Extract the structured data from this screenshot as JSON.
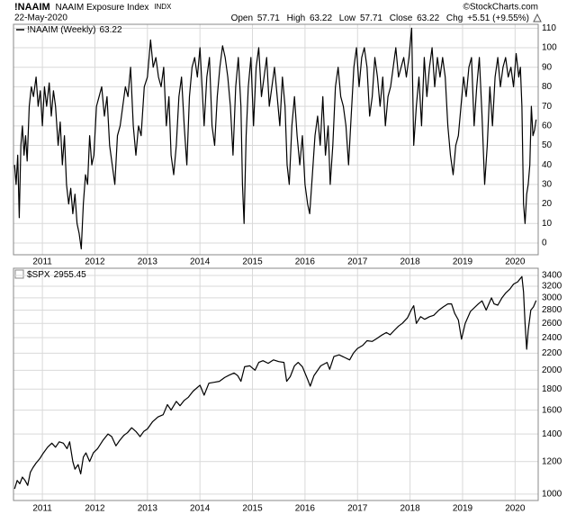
{
  "header": {
    "symbol": "!NAAIM",
    "name": "NAAIM Exposure Index",
    "exchange": "INDX",
    "date": "22-May-2020",
    "watermark": "©StockCharts.com",
    "stats": [
      {
        "label": "Open",
        "value": 57.71
      },
      {
        "label": "High",
        "value": 63.22
      },
      {
        "label": "Low",
        "value": 57.71
      },
      {
        "label": "Close",
        "value": 63.22
      },
      {
        "label": "Chg",
        "value": "+5.51 (+9.55%)"
      }
    ]
  },
  "chart_data": [
    {
      "type": "line",
      "legend_value": 63.22,
      "x": [
        2010.47,
        2010.5,
        2010.53,
        2010.56,
        2010.59,
        2010.62,
        2010.65,
        2010.68,
        2010.71,
        2010.75,
        2010.79,
        2010.83,
        2010.88,
        2010.92,
        2010.96,
        2011.0,
        2011.04,
        2011.08,
        2011.13,
        2011.17,
        2011.21,
        2011.25,
        2011.3,
        2011.34,
        2011.38,
        2011.42,
        2011.46,
        2011.5,
        2011.54,
        2011.58,
        2011.62,
        2011.66,
        2011.7,
        2011.74,
        2011.78,
        2011.82,
        2011.86,
        2011.9,
        2011.94,
        2011.98,
        2012.03,
        2012.08,
        2012.13,
        2012.18,
        2012.23,
        2012.28,
        2012.33,
        2012.38,
        2012.43,
        2012.48,
        2012.53,
        2012.58,
        2012.63,
        2012.68,
        2012.73,
        2012.78,
        2012.83,
        2012.88,
        2012.94,
        2013.0,
        2013.06,
        2013.11,
        2013.16,
        2013.21,
        2013.26,
        2013.31,
        2013.36,
        2013.41,
        2013.45,
        2013.5,
        2013.55,
        2013.6,
        2013.65,
        2013.7,
        2013.75,
        2013.8,
        2013.85,
        2013.9,
        2013.95,
        2014.0,
        2014.04,
        2014.08,
        2014.13,
        2014.18,
        2014.23,
        2014.28,
        2014.33,
        2014.38,
        2014.43,
        2014.48,
        2014.53,
        2014.58,
        2014.63,
        2014.68,
        2014.73,
        2014.78,
        2014.81,
        2014.84,
        2014.88,
        2014.92,
        2014.97,
        2015.02,
        2015.07,
        2015.12,
        2015.17,
        2015.22,
        2015.27,
        2015.32,
        2015.37,
        2015.42,
        2015.47,
        2015.52,
        2015.57,
        2015.62,
        2015.66,
        2015.7,
        2015.75,
        2015.8,
        2015.85,
        2015.9,
        2015.95,
        2016.0,
        2016.05,
        2016.09,
        2016.14,
        2016.19,
        2016.24,
        2016.29,
        2016.34,
        2016.39,
        2016.44,
        2016.48,
        2016.53,
        2016.58,
        2016.63,
        2016.68,
        2016.73,
        2016.78,
        2016.83,
        2016.88,
        2016.93,
        2016.98,
        2017.03,
        2017.08,
        2017.13,
        2017.18,
        2017.23,
        2017.28,
        2017.33,
        2017.38,
        2017.43,
        2017.48,
        2017.53,
        2017.58,
        2017.63,
        2017.68,
        2017.73,
        2017.78,
        2017.83,
        2017.88,
        2017.93,
        2017.98,
        2018.03,
        2018.07,
        2018.12,
        2018.17,
        2018.22,
        2018.27,
        2018.32,
        2018.37,
        2018.42,
        2018.47,
        2018.52,
        2018.57,
        2018.62,
        2018.67,
        2018.72,
        2018.77,
        2018.82,
        2018.87,
        2018.92,
        2018.97,
        2019.02,
        2019.07,
        2019.12,
        2019.17,
        2019.22,
        2019.27,
        2019.32,
        2019.37,
        2019.42,
        2019.47,
        2019.52,
        2019.57,
        2019.62,
        2019.67,
        2019.72,
        2019.77,
        2019.82,
        2019.87,
        2019.92,
        2019.97,
        2020.02,
        2020.07,
        2020.1,
        2020.13,
        2020.16,
        2020.19,
        2020.22,
        2020.25,
        2020.28,
        2020.31,
        2020.34,
        2020.37,
        2020.4
      ],
      "series": [
        {
          "name": "!NAAIM (Weekly)",
          "color": "#000000",
          "values": [
            40,
            30,
            45,
            13,
            50,
            60,
            45,
            55,
            42,
            70,
            80,
            75,
            85,
            70,
            78,
            60,
            80,
            70,
            82,
            65,
            78,
            70,
            50,
            62,
            40,
            55,
            30,
            20,
            28,
            15,
            25,
            10,
            5,
            -3,
            20,
            35,
            30,
            55,
            40,
            45,
            70,
            75,
            80,
            65,
            75,
            50,
            40,
            30,
            55,
            60,
            70,
            80,
            75,
            90,
            60,
            45,
            60,
            55,
            80,
            85,
            104,
            90,
            95,
            85,
            80,
            90,
            60,
            75,
            45,
            35,
            50,
            75,
            85,
            60,
            40,
            75,
            90,
            95,
            85,
            100,
            80,
            60,
            85,
            95,
            60,
            50,
            75,
            90,
            101,
            95,
            85,
            70,
            45,
            80,
            95,
            70,
            30,
            10,
            55,
            80,
            95,
            60,
            90,
            100,
            75,
            85,
            95,
            70,
            80,
            90,
            75,
            60,
            85,
            70,
            40,
            30,
            60,
            75,
            55,
            40,
            55,
            30,
            20,
            15,
            35,
            55,
            65,
            50,
            75,
            45,
            60,
            30,
            50,
            80,
            90,
            75,
            70,
            60,
            40,
            65,
            90,
            100,
            80,
            95,
            100,
            90,
            65,
            75,
            95,
            85,
            70,
            85,
            60,
            75,
            80,
            90,
            100,
            85,
            90,
            95,
            85,
            95,
            110,
            50,
            70,
            85,
            60,
            95,
            75,
            90,
            100,
            80,
            95,
            85,
            95,
            85,
            60,
            45,
            35,
            50,
            55,
            70,
            85,
            75,
            90,
            95,
            60,
            80,
            95,
            65,
            30,
            50,
            80,
            60,
            85,
            95,
            80,
            90,
            95,
            85,
            90,
            80,
            97,
            85,
            90,
            70,
            20,
            10,
            25,
            30,
            40,
            70,
            55,
            57.71,
            63.22
          ]
        }
      ],
      "xlim": [
        2010.45,
        2020.44
      ],
      "xticks": [
        2011,
        2012,
        2013,
        2014,
        2015,
        2016,
        2017,
        2018,
        2019,
        2020
      ],
      "ylim": [
        -6,
        112
      ],
      "yticks": [
        0,
        10,
        20,
        30,
        40,
        50,
        60,
        70,
        80,
        90,
        100,
        110
      ],
      "grid": true,
      "log_scale": false
    },
    {
      "type": "line",
      "legend_value": 2955.45,
      "x": [
        2010.47,
        2010.52,
        2010.57,
        2010.62,
        2010.67,
        2010.72,
        2010.77,
        2010.82,
        2010.88,
        2010.95,
        2011.02,
        2011.1,
        2011.18,
        2011.25,
        2011.32,
        2011.4,
        2011.47,
        2011.52,
        2011.58,
        2011.62,
        2011.68,
        2011.73,
        2011.78,
        2011.83,
        2011.9,
        2011.97,
        2012.05,
        2012.15,
        2012.25,
        2012.32,
        2012.4,
        2012.47,
        2012.55,
        2012.62,
        2012.7,
        2012.78,
        2012.86,
        2012.93,
        2013.0,
        2013.1,
        2013.2,
        2013.3,
        2013.38,
        2013.45,
        2013.55,
        2013.62,
        2013.7,
        2013.78,
        2013.87,
        2014.0,
        2014.08,
        2014.17,
        2014.27,
        2014.37,
        2014.47,
        2014.57,
        2014.65,
        2014.72,
        2014.78,
        2014.85,
        2014.95,
        2015.05,
        2015.12,
        2015.2,
        2015.3,
        2015.4,
        2015.5,
        2015.6,
        2015.65,
        2015.72,
        2015.8,
        2015.87,
        2015.95,
        2016.05,
        2016.1,
        2016.17,
        2016.3,
        2016.42,
        2016.47,
        2016.55,
        2016.65,
        2016.75,
        2016.85,
        2016.92,
        2017.0,
        2017.1,
        2017.18,
        2017.28,
        2017.37,
        2017.45,
        2017.55,
        2017.62,
        2017.7,
        2017.78,
        2017.85,
        2017.95,
        2018.02,
        2018.07,
        2018.12,
        2018.2,
        2018.28,
        2018.37,
        2018.45,
        2018.55,
        2018.63,
        2018.72,
        2018.79,
        2018.85,
        2018.92,
        2018.98,
        2019.05,
        2019.15,
        2019.3,
        2019.37,
        2019.45,
        2019.55,
        2019.6,
        2019.67,
        2019.75,
        2019.82,
        2019.9,
        2019.97,
        2020.05,
        2020.13,
        2020.16,
        2020.19,
        2020.22,
        2020.25,
        2020.3,
        2020.35,
        2020.4
      ],
      "series": [
        {
          "name": "$SPX",
          "color": "#000000",
          "values": [
            1030,
            1080,
            1060,
            1100,
            1080,
            1050,
            1130,
            1160,
            1190,
            1220,
            1260,
            1300,
            1330,
            1300,
            1340,
            1330,
            1290,
            1340,
            1200,
            1150,
            1180,
            1120,
            1230,
            1260,
            1200,
            1260,
            1290,
            1350,
            1400,
            1380,
            1310,
            1350,
            1390,
            1410,
            1450,
            1420,
            1380,
            1420,
            1440,
            1500,
            1540,
            1560,
            1650,
            1600,
            1680,
            1640,
            1690,
            1720,
            1780,
            1840,
            1740,
            1860,
            1870,
            1880,
            1920,
            1950,
            1970,
            1940,
            1880,
            2040,
            2050,
            2000,
            2090,
            2110,
            2080,
            2120,
            2100,
            2090,
            1880,
            1930,
            2050,
            2090,
            2040,
            1900,
            1830,
            1940,
            2050,
            2090,
            2010,
            2160,
            2180,
            2150,
            2120,
            2200,
            2260,
            2300,
            2360,
            2350,
            2390,
            2430,
            2470,
            2440,
            2500,
            2560,
            2600,
            2680,
            2800,
            2870,
            2600,
            2700,
            2660,
            2700,
            2720,
            2800,
            2850,
            2900,
            2900,
            2750,
            2650,
            2380,
            2600,
            2780,
            2900,
            2950,
            2800,
            3000,
            2900,
            2880,
            3000,
            3080,
            3150,
            3240,
            3280,
            3380,
            3100,
            2600,
            2250,
            2500,
            2800,
            2850,
            2955.45
          ]
        }
      ],
      "xlim": [
        2010.45,
        2020.44
      ],
      "xticks": [
        2011,
        2012,
        2013,
        2014,
        2015,
        2016,
        2017,
        2018,
        2019,
        2020
      ],
      "ylim": [
        965,
        3540
      ],
      "yticks": [
        1000,
        1200,
        1400,
        1600,
        1800,
        2000,
        2200,
        2400,
        2600,
        2800,
        3000,
        3200,
        3400
      ],
      "grid": true,
      "log_scale": true
    }
  ]
}
